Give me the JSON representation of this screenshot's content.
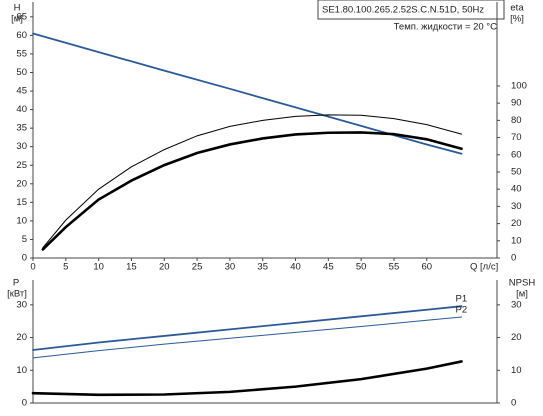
{
  "chart_data": [
    {
      "type": "line",
      "title": "SE1.80.100.265.2.52S.C.N.51D, 50Hz",
      "subtitle": "Темп. жидкости = 20 °C",
      "ylabel": "H",
      "yunit": "[м]",
      "y2label": "eta",
      "y2unit": "[%]",
      "xlabel": "Q [л/с]",
      "xlim": [
        0,
        70.7
      ],
      "xticks": [
        0,
        5,
        10,
        15,
        20,
        25,
        30,
        35,
        40,
        45,
        50,
        55,
        60
      ],
      "ylim": [
        0,
        69
      ],
      "yticks": [
        0,
        5,
        10,
        15,
        20,
        25,
        30,
        35,
        40,
        45,
        50,
        55,
        60,
        65
      ],
      "y2lim": [
        0,
        148.8
      ],
      "y2ticks": [
        0,
        10,
        20,
        30,
        40,
        50,
        60,
        70,
        80,
        90,
        100
      ],
      "series": [
        {
          "color": "#2a5a9a",
          "x": [
            0,
            10,
            20,
            30,
            40,
            50,
            60,
            65.3
          ],
          "values": [
            60.5,
            55.5,
            50.5,
            45.6,
            40.6,
            35.6,
            30.6,
            28.1
          ]
        },
        {
          "color": "#000000",
          "axis": "y2",
          "x": [
            1.5,
            5,
            10,
            15,
            20,
            25,
            30,
            35,
            40,
            45,
            50,
            55,
            60,
            65.3
          ],
          "values": [
            6,
            22,
            40,
            53,
            63,
            71,
            76.5,
            80,
            82.3,
            83.2,
            83,
            81,
            77.5,
            72
          ]
        },
        {
          "color": "#000000",
          "axis": "y2",
          "x": [
            1.5,
            5,
            10,
            15,
            20,
            25,
            30,
            35,
            40,
            45,
            50,
            55,
            60,
            65.3
          ],
          "values": [
            5,
            18,
            34,
            45,
            54,
            61,
            66,
            69.5,
            71.8,
            72.8,
            73,
            72,
            69,
            63.5
          ]
        }
      ]
    },
    {
      "type": "line",
      "ylabel": "P",
      "yunit": "[кВт]",
      "y2label": "NPSH",
      "y2unit": "[м]",
      "xlim": [
        0,
        70.7
      ],
      "ylim": [
        0,
        37.6
      ],
      "yticks": [
        0,
        10,
        20,
        30
      ],
      "y2lim": [
        0,
        37.6
      ],
      "y2ticks": [
        0,
        10,
        20,
        30
      ],
      "series": [
        {
          "name": "P1",
          "color": "#2a5a9a",
          "x": [
            0,
            10,
            20,
            30,
            40,
            50,
            60,
            65.3
          ],
          "values": [
            16.2,
            18.5,
            20.5,
            22.5,
            24.5,
            26.5,
            28.5,
            29.6
          ]
        },
        {
          "name": "P2",
          "color": "#2a5a9a",
          "x": [
            0,
            10,
            20,
            30,
            40,
            50,
            60,
            65.3
          ],
          "values": [
            13.8,
            16,
            18,
            19.8,
            21.6,
            23.4,
            25.3,
            26.3
          ]
        },
        {
          "color": "#000000",
          "axis": "y2",
          "x": [
            0,
            10,
            20,
            30,
            40,
            50,
            60,
            65.3
          ],
          "values": [
            3,
            2.5,
            2.6,
            3.4,
            5,
            7.3,
            10.5,
            12.7
          ]
        }
      ]
    }
  ]
}
